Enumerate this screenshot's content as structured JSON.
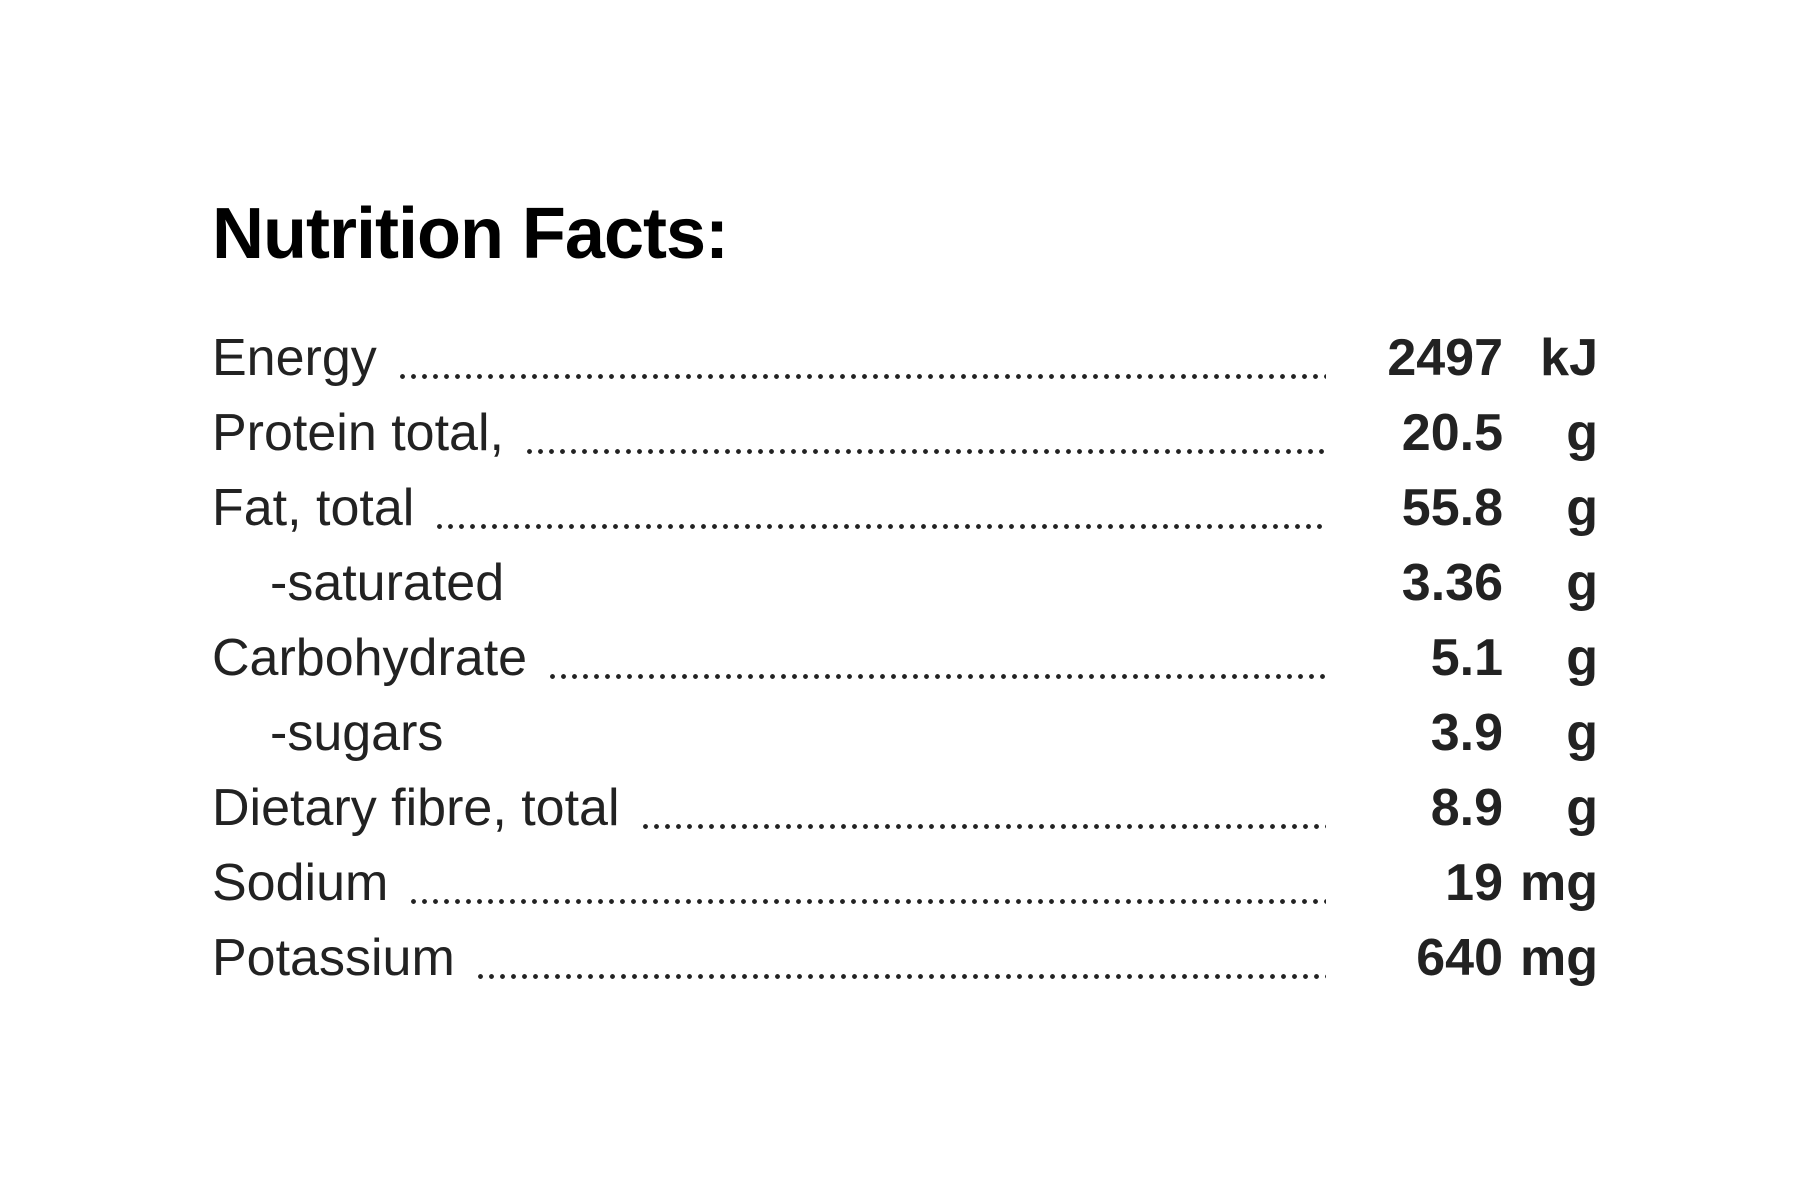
{
  "title": "Nutrition Facts:",
  "rows": [
    {
      "label": "Energy",
      "value": "2497",
      "unit": "kJ"
    },
    {
      "label": "Protein total,",
      "value": "20.5",
      "unit": "g"
    },
    {
      "label": "Fat, total",
      "value": "55.8",
      "unit": "g"
    },
    {
      "label": "-saturated",
      "value": "3.36",
      "unit": "g"
    },
    {
      "label": "Carbohydrate",
      "value": "5.1",
      "unit": "g"
    },
    {
      "label": "-sugars",
      "value": "3.9",
      "unit": "g"
    },
    {
      "label": "Dietary fibre, total",
      "value": "8.9",
      "unit": "g"
    },
    {
      "label": "Sodium",
      "value": "19",
      "unit": "mg"
    },
    {
      "label": "Potassium",
      "value": "640",
      "unit": "mg"
    }
  ]
}
